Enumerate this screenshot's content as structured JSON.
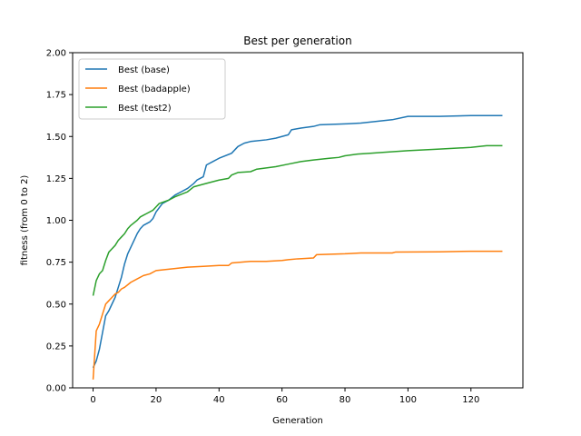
{
  "chart_data": {
    "type": "line",
    "title": "Best per generation",
    "xlabel": "Generation",
    "ylabel": "fitness (from 0 to 2)",
    "xlim": [
      -6.5,
      136.5
    ],
    "ylim": [
      0,
      2
    ],
    "xticks": [
      0,
      20,
      40,
      60,
      80,
      100,
      120
    ],
    "yticks": [
      0.0,
      0.25,
      0.5,
      0.75,
      1.0,
      1.25,
      1.5,
      1.75,
      2.0
    ],
    "ytick_labels": [
      "0.00",
      "0.25",
      "0.50",
      "0.75",
      "1.00",
      "1.25",
      "1.50",
      "1.75",
      "2.00"
    ],
    "grid": false,
    "legend_position": "upper-left",
    "series": [
      {
        "name": "Best (base)",
        "color": "#1f77b4",
        "points": [
          [
            0,
            0.12
          ],
          [
            1,
            0.16
          ],
          [
            2,
            0.23
          ],
          [
            3,
            0.33
          ],
          [
            4,
            0.43
          ],
          [
            5,
            0.46
          ],
          [
            6,
            0.5
          ],
          [
            7,
            0.54
          ],
          [
            8,
            0.6
          ],
          [
            9,
            0.66
          ],
          [
            10,
            0.74
          ],
          [
            11,
            0.8
          ],
          [
            12,
            0.84
          ],
          [
            13,
            0.88
          ],
          [
            14,
            0.92
          ],
          [
            15,
            0.95
          ],
          [
            16,
            0.97
          ],
          [
            18,
            0.99
          ],
          [
            19,
            1.01
          ],
          [
            20,
            1.05
          ],
          [
            22,
            1.1
          ],
          [
            24,
            1.12
          ],
          [
            26,
            1.15
          ],
          [
            28,
            1.17
          ],
          [
            30,
            1.19
          ],
          [
            32,
            1.22
          ],
          [
            33,
            1.24
          ],
          [
            35,
            1.26
          ],
          [
            36,
            1.33
          ],
          [
            38,
            1.35
          ],
          [
            40,
            1.37
          ],
          [
            44,
            1.4
          ],
          [
            46,
            1.44
          ],
          [
            48,
            1.46
          ],
          [
            50,
            1.47
          ],
          [
            55,
            1.48
          ],
          [
            58,
            1.49
          ],
          [
            62,
            1.51
          ],
          [
            63,
            1.54
          ],
          [
            66,
            1.55
          ],
          [
            70,
            1.56
          ],
          [
            72,
            1.57
          ],
          [
            80,
            1.575
          ],
          [
            85,
            1.58
          ],
          [
            90,
            1.59
          ],
          [
            95,
            1.6
          ],
          [
            100,
            1.62
          ],
          [
            110,
            1.62
          ],
          [
            120,
            1.625
          ],
          [
            130,
            1.625
          ]
        ]
      },
      {
        "name": "Best (badapple)",
        "color": "#ff7f0e",
        "points": [
          [
            0,
            0.05
          ],
          [
            1,
            0.34
          ],
          [
            2,
            0.38
          ],
          [
            3,
            0.44
          ],
          [
            4,
            0.5
          ],
          [
            5,
            0.52
          ],
          [
            6,
            0.54
          ],
          [
            7,
            0.56
          ],
          [
            8,
            0.57
          ],
          [
            9,
            0.59
          ],
          [
            10,
            0.6
          ],
          [
            12,
            0.63
          ],
          [
            14,
            0.65
          ],
          [
            16,
            0.67
          ],
          [
            18,
            0.68
          ],
          [
            20,
            0.7
          ],
          [
            25,
            0.71
          ],
          [
            30,
            0.72
          ],
          [
            35,
            0.725
          ],
          [
            40,
            0.73
          ],
          [
            43,
            0.73
          ],
          [
            44,
            0.745
          ],
          [
            50,
            0.755
          ],
          [
            55,
            0.755
          ],
          [
            60,
            0.76
          ],
          [
            62,
            0.765
          ],
          [
            65,
            0.77
          ],
          [
            70,
            0.775
          ],
          [
            71,
            0.795
          ],
          [
            80,
            0.8
          ],
          [
            85,
            0.805
          ],
          [
            95,
            0.805
          ],
          [
            96,
            0.81
          ],
          [
            110,
            0.812
          ],
          [
            120,
            0.815
          ],
          [
            130,
            0.815
          ]
        ]
      },
      {
        "name": "Best (test2)",
        "color": "#2ca02c",
        "points": [
          [
            0,
            0.55
          ],
          [
            1,
            0.64
          ],
          [
            2,
            0.68
          ],
          [
            3,
            0.7
          ],
          [
            4,
            0.76
          ],
          [
            5,
            0.81
          ],
          [
            6,
            0.83
          ],
          [
            7,
            0.85
          ],
          [
            8,
            0.88
          ],
          [
            9,
            0.9
          ],
          [
            10,
            0.92
          ],
          [
            11,
            0.95
          ],
          [
            12,
            0.97
          ],
          [
            14,
            1.0
          ],
          [
            15,
            1.02
          ],
          [
            16,
            1.03
          ],
          [
            17,
            1.04
          ],
          [
            19,
            1.06
          ],
          [
            20,
            1.08
          ],
          [
            21,
            1.1
          ],
          [
            24,
            1.12
          ],
          [
            26,
            1.14
          ],
          [
            30,
            1.17
          ],
          [
            32,
            1.2
          ],
          [
            36,
            1.22
          ],
          [
            40,
            1.24
          ],
          [
            43,
            1.25
          ],
          [
            44,
            1.27
          ],
          [
            46,
            1.285
          ],
          [
            50,
            1.29
          ],
          [
            52,
            1.305
          ],
          [
            58,
            1.32
          ],
          [
            62,
            1.335
          ],
          [
            66,
            1.35
          ],
          [
            70,
            1.36
          ],
          [
            75,
            1.37
          ],
          [
            78,
            1.375
          ],
          [
            80,
            1.385
          ],
          [
            84,
            1.395
          ],
          [
            88,
            1.4
          ],
          [
            92,
            1.405
          ],
          [
            100,
            1.415
          ],
          [
            110,
            1.425
          ],
          [
            120,
            1.435
          ],
          [
            125,
            1.445
          ],
          [
            130,
            1.445
          ]
        ]
      }
    ]
  }
}
